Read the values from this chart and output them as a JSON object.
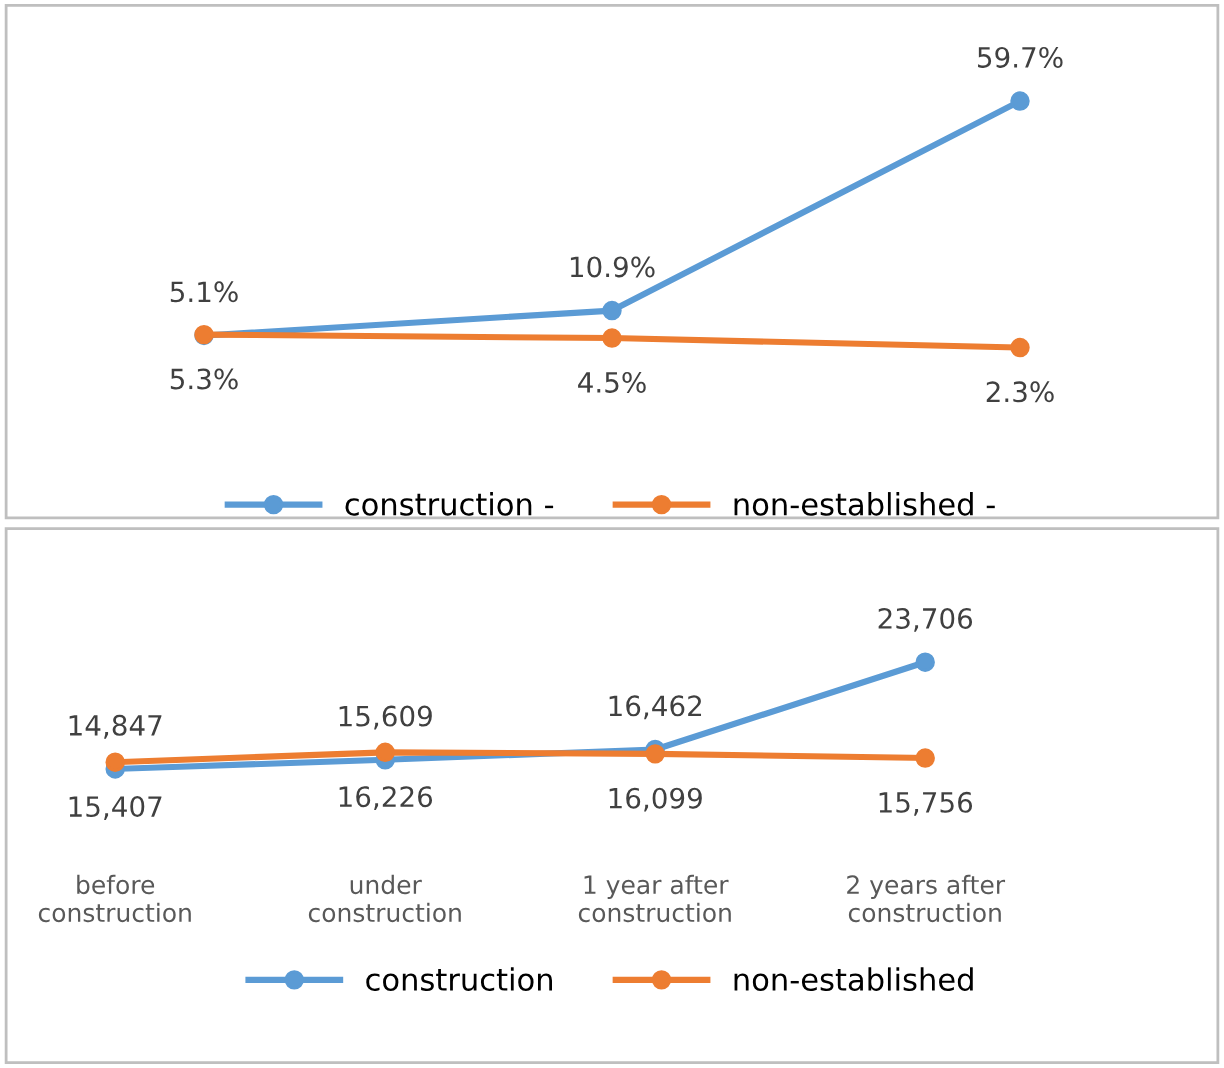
{
  "chart_data": [
    {
      "type": "line",
      "categories": [
        null,
        null,
        null
      ],
      "marker": "circle",
      "legend": "bottom",
      "grid": false,
      "series": [
        {
          "name": "construction -",
          "color": "#5b9bd5",
          "values": [
            5.1,
            10.9,
            59.7
          ],
          "value_labels": [
            "5.1%",
            "10.9%",
            "59.7%"
          ]
        },
        {
          "name": "non-established -",
          "color": "#ed7d31",
          "values": [
            5.3,
            4.5,
            2.3
          ],
          "value_labels": [
            "5.3%",
            "4.5%",
            "2.3%"
          ]
        }
      ]
    },
    {
      "type": "line",
      "categories": [
        "before\nconstruction",
        "under\nconstruction",
        "1 year after\nconstruction",
        "2 years after\nconstruction"
      ],
      "marker": "circle",
      "legend": "bottom",
      "grid": false,
      "series": [
        {
          "name": "construction",
          "color": "#5b9bd5",
          "values": [
            14847,
            15609,
            16462,
            23706
          ],
          "value_labels": [
            "14,847",
            "15,609",
            "16,462",
            "23,706"
          ]
        },
        {
          "name": "non-established",
          "color": "#ed7d31",
          "values": [
            15407,
            16226,
            16099,
            15756
          ],
          "value_labels": [
            "15,407",
            "16,226",
            "16,099",
            "15,756"
          ]
        }
      ]
    }
  ]
}
